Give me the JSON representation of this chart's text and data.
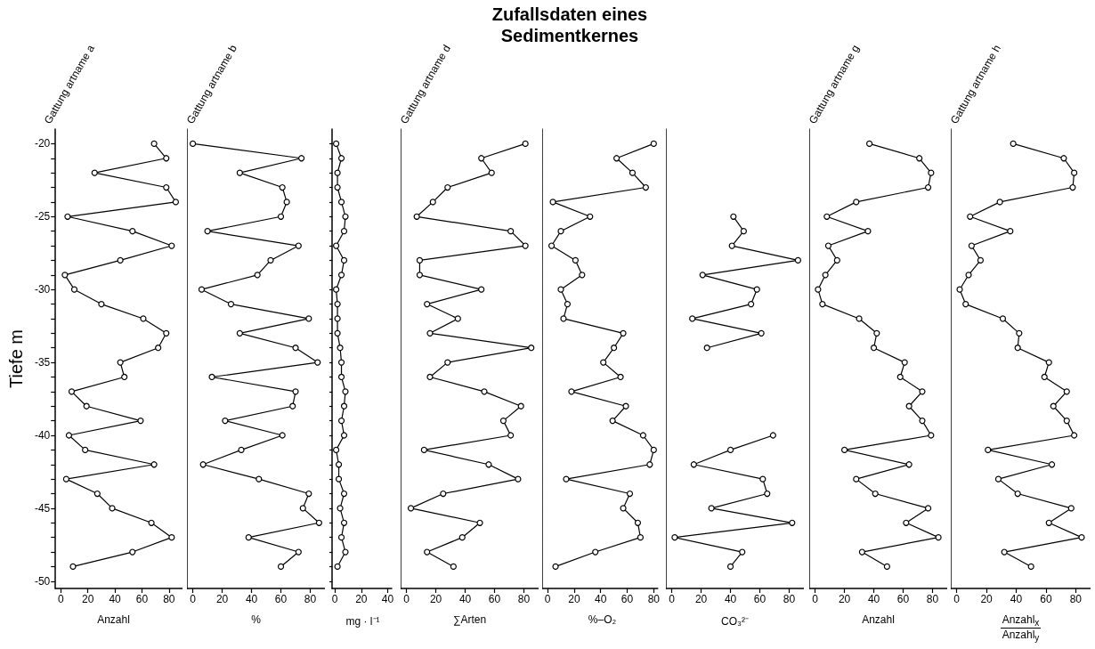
{
  "chart_data": [
    {
      "type": "other",
      "title": "Zufallsdaten eines Sedimentkernes"
    },
    {
      "type": "line",
      "title": "Gattung artname a",
      "xlabel": "Anzahl",
      "ylabel": "Tiefe m",
      "marker": "circle",
      "line_style": "solid",
      "xlim": [
        -4,
        90
      ],
      "xticks": [
        0,
        20,
        40,
        60,
        80
      ],
      "ylim": [
        -50.5,
        -19
      ],
      "yticks": [
        -20,
        {
          "value": -21,
          "label": null
        },
        {
          "value": -22,
          "label": null
        },
        {
          "value": -23,
          "label": null
        },
        {
          "value": -24,
          "label": null
        },
        -25,
        {
          "value": -26,
          "label": null
        },
        {
          "value": -27,
          "label": null
        },
        {
          "value": -28,
          "label": null
        },
        {
          "value": -29,
          "label": null
        },
        -30,
        {
          "value": -31,
          "label": null
        },
        {
          "value": -32,
          "label": null
        },
        {
          "value": -33,
          "label": null
        },
        {
          "value": -34,
          "label": null
        },
        -35,
        {
          "value": -36,
          "label": null
        },
        {
          "value": -37,
          "label": null
        },
        {
          "value": -38,
          "label": null
        },
        {
          "value": -39,
          "label": null
        },
        -40,
        {
          "value": -41,
          "label": null
        },
        {
          "value": -42,
          "label": null
        },
        {
          "value": -43,
          "label": null
        },
        {
          "value": -44,
          "label": null
        },
        -45,
        {
          "value": -46,
          "label": null
        },
        {
          "value": -47,
          "label": null
        },
        {
          "value": -48,
          "label": null
        },
        {
          "value": -49,
          "label": null
        },
        -50
      ],
      "series": [
        {
          "color": "#000000",
          "x": [
            69,
            78,
            25,
            78,
            85,
            5,
            53,
            82,
            44,
            3,
            10,
            30,
            61,
            78,
            72,
            44,
            47,
            8,
            19,
            59,
            6,
            18,
            69,
            4,
            27,
            38,
            67,
            82,
            53,
            9
          ],
          "values": [
            -20,
            -21,
            -22,
            -23,
            -24,
            -25,
            -26,
            -27,
            -28,
            -29,
            -30,
            -31,
            -32,
            -33,
            -34,
            -35,
            -36,
            -37,
            -38,
            -39,
            -40,
            -41,
            -42,
            -43,
            -44,
            -45,
            -46,
            -47,
            -48,
            -49
          ]
        }
      ]
    },
    {
      "type": "line",
      "title": "Gattung artname b",
      "xlabel": "%",
      "tick_labels": "x",
      "marker": "circle",
      "line_style": "solid",
      "xlim": [
        -4,
        90
      ],
      "xticks": [
        0,
        20,
        40,
        60,
        80
      ],
      "ylim": [
        -50.5,
        -19
      ],
      "yticks": [
        -20,
        {
          "value": -21,
          "label": null
        },
        {
          "value": -22,
          "label": null
        },
        {
          "value": -23,
          "label": null
        },
        {
          "value": -24,
          "label": null
        },
        -25,
        {
          "value": -26,
          "label": null
        },
        {
          "value": -27,
          "label": null
        },
        {
          "value": -28,
          "label": null
        },
        {
          "value": -29,
          "label": null
        },
        -30,
        {
          "value": -31,
          "label": null
        },
        {
          "value": -32,
          "label": null
        },
        {
          "value": -33,
          "label": null
        },
        {
          "value": -34,
          "label": null
        },
        -35,
        {
          "value": -36,
          "label": null
        },
        {
          "value": -37,
          "label": null
        },
        {
          "value": -38,
          "label": null
        },
        {
          "value": -39,
          "label": null
        },
        -40,
        {
          "value": -41,
          "label": null
        },
        {
          "value": -42,
          "label": null
        },
        {
          "value": -43,
          "label": null
        },
        {
          "value": -44,
          "label": null
        },
        -45,
        {
          "value": -46,
          "label": null
        },
        {
          "value": -47,
          "label": null
        },
        {
          "value": -48,
          "label": null
        },
        {
          "value": -49,
          "label": null
        },
        -50
      ],
      "series": [
        {
          "color": "#000000",
          "x": [
            0,
            74,
            32,
            61,
            64,
            60,
            10,
            72,
            53,
            44,
            6,
            26,
            79,
            32,
            70,
            85,
            13,
            70,
            68,
            22,
            61,
            33,
            7,
            45,
            79,
            75,
            86,
            38,
            72,
            60
          ],
          "values": [
            -20,
            -21,
            -22,
            -23,
            -24,
            -25,
            -26,
            -27,
            -28,
            -29,
            -30,
            -31,
            -32,
            -33,
            -34,
            -35,
            -36,
            -37,
            -38,
            -39,
            -40,
            -41,
            -42,
            -43,
            -44,
            -45,
            -46,
            -47,
            -48,
            -49
          ]
        }
      ]
    },
    {
      "type": "line",
      "xlabel": "mg · l⁻¹",
      "tick_labels": "x",
      "marker": "circle",
      "line_style": "solid",
      "xlim": [
        -2,
        43
      ],
      "xticks": [
        0,
        20,
        40
      ],
      "ylim": [
        -50.5,
        -19
      ],
      "yticks": [
        -20,
        {
          "value": -21,
          "label": null
        },
        {
          "value": -22,
          "label": null
        },
        {
          "value": -23,
          "label": null
        },
        {
          "value": -24,
          "label": null
        },
        -25,
        {
          "value": -26,
          "label": null
        },
        {
          "value": -27,
          "label": null
        },
        {
          "value": -28,
          "label": null
        },
        {
          "value": -29,
          "label": null
        },
        -30,
        {
          "value": -31,
          "label": null
        },
        {
          "value": -32,
          "label": null
        },
        {
          "value": -33,
          "label": null
        },
        {
          "value": -34,
          "label": null
        },
        -35,
        {
          "value": -36,
          "label": null
        },
        {
          "value": -37,
          "label": null
        },
        {
          "value": -38,
          "label": null
        },
        {
          "value": -39,
          "label": null
        },
        -40,
        {
          "value": -41,
          "label": null
        },
        {
          "value": -42,
          "label": null
        },
        {
          "value": -43,
          "label": null
        },
        {
          "value": -44,
          "label": null
        },
        -45,
        {
          "value": -46,
          "label": null
        },
        {
          "value": -47,
          "label": null
        },
        {
          "value": -48,
          "label": null
        },
        {
          "value": -49,
          "label": null
        },
        -50
      ],
      "series": [
        {
          "color": "#000000",
          "x": [
            1,
            5,
            2,
            2,
            5,
            8,
            7,
            1,
            7,
            5,
            1,
            2,
            2,
            2,
            4,
            5,
            5,
            8,
            7,
            5,
            7,
            1,
            3,
            3,
            7,
            4,
            7,
            5,
            8,
            2
          ],
          "values": [
            -20,
            -21,
            -22,
            -23,
            -24,
            -25,
            -26,
            -27,
            -28,
            -29,
            -30,
            -31,
            -32,
            -33,
            -34,
            -35,
            -36,
            -37,
            -38,
            -39,
            -40,
            -41,
            -42,
            -43,
            -44,
            -45,
            -46,
            -47,
            -48,
            -49
          ]
        }
      ]
    },
    {
      "type": "line",
      "title": "Gattung artname d",
      "xlabel": "∑Arten",
      "tick_labels": "x",
      "marker": "circle",
      "line_style": "solid",
      "xlim": [
        -4,
        90
      ],
      "xticks": [
        0,
        20,
        40,
        60,
        80
      ],
      "ylim": [
        -50.5,
        -19
      ],
      "yticks": [
        -20,
        {
          "value": -21,
          "label": null
        },
        {
          "value": -22,
          "label": null
        },
        {
          "value": -23,
          "label": null
        },
        {
          "value": -24,
          "label": null
        },
        -25,
        {
          "value": -26,
          "label": null
        },
        {
          "value": -27,
          "label": null
        },
        {
          "value": -28,
          "label": null
        },
        {
          "value": -29,
          "label": null
        },
        -30,
        {
          "value": -31,
          "label": null
        },
        {
          "value": -32,
          "label": null
        },
        {
          "value": -33,
          "label": null
        },
        {
          "value": -34,
          "label": null
        },
        -35,
        {
          "value": -36,
          "label": null
        },
        {
          "value": -37,
          "label": null
        },
        {
          "value": -38,
          "label": null
        },
        {
          "value": -39,
          "label": null
        },
        -40,
        {
          "value": -41,
          "label": null
        },
        {
          "value": -42,
          "label": null
        },
        {
          "value": -43,
          "label": null
        },
        {
          "value": -44,
          "label": null
        },
        -45,
        {
          "value": -46,
          "label": null
        },
        {
          "value": -47,
          "label": null
        },
        {
          "value": -48,
          "label": null
        },
        {
          "value": -49,
          "label": null
        },
        -50
      ],
      "series": [
        {
          "color": "#000000",
          "x": [
            81,
            51,
            58,
            28,
            18,
            7,
            71,
            81,
            9,
            9,
            51,
            14,
            35,
            16,
            85,
            28,
            16,
            53,
            78,
            66,
            71,
            12,
            56,
            76,
            25,
            3,
            50,
            38,
            14,
            32
          ],
          "values": [
            -20,
            -21,
            -22,
            -23,
            -24,
            -25,
            -26,
            -27,
            -28,
            -29,
            -30,
            -31,
            -32,
            -33,
            -34,
            -35,
            -36,
            -37,
            -38,
            -39,
            -40,
            -41,
            -42,
            -43,
            -44,
            -45,
            -46,
            -47,
            -48,
            -49
          ]
        }
      ]
    },
    {
      "type": "line",
      "xlabel": "%–O₂",
      "tick_labels": "x",
      "marker": "circle",
      "line_style": "solid",
      "xlim": [
        -4,
        83
      ],
      "xticks": [
        0,
        20,
        40,
        60,
        80
      ],
      "ylim": [
        -50.5,
        -19
      ],
      "yticks": [
        -20,
        {
          "value": -21,
          "label": null
        },
        {
          "value": -22,
          "label": null
        },
        {
          "value": -23,
          "label": null
        },
        {
          "value": -24,
          "label": null
        },
        -25,
        {
          "value": -26,
          "label": null
        },
        {
          "value": -27,
          "label": null
        },
        {
          "value": -28,
          "label": null
        },
        {
          "value": -29,
          "label": null
        },
        -30,
        {
          "value": -31,
          "label": null
        },
        {
          "value": -32,
          "label": null
        },
        {
          "value": -33,
          "label": null
        },
        {
          "value": -34,
          "label": null
        },
        -35,
        {
          "value": -36,
          "label": null
        },
        {
          "value": -37,
          "label": null
        },
        {
          "value": -38,
          "label": null
        },
        {
          "value": -39,
          "label": null
        },
        -40,
        {
          "value": -41,
          "label": null
        },
        {
          "value": -42,
          "label": null
        },
        {
          "value": -43,
          "label": null
        },
        {
          "value": -44,
          "label": null
        },
        -45,
        {
          "value": -46,
          "label": null
        },
        {
          "value": -47,
          "label": null
        },
        {
          "value": -48,
          "label": null
        },
        {
          "value": -49,
          "label": null
        },
        -50
      ],
      "series": [
        {
          "color": "#000000",
          "x": [
            80,
            52,
            64,
            74,
            4,
            32,
            10,
            3,
            21,
            26,
            10,
            15,
            12,
            57,
            50,
            42,
            55,
            18,
            59,
            49,
            72,
            80,
            77,
            14,
            62,
            57,
            68,
            70,
            36,
            6
          ],
          "values": [
            -20,
            -21,
            -22,
            -23,
            -24,
            -25,
            -26,
            -27,
            -28,
            -29,
            -30,
            -31,
            -32,
            -33,
            -34,
            -35,
            -36,
            -37,
            -38,
            -39,
            -40,
            -41,
            -42,
            -43,
            -44,
            -45,
            -46,
            -47,
            -48,
            -49
          ]
        }
      ]
    },
    {
      "type": "line",
      "xlabel": "CO₃²⁻",
      "tick_labels": "x",
      "marker": "circle",
      "line_style": "solid",
      "xlim": [
        -4,
        90
      ],
      "xticks": [
        0,
        20,
        40,
        60,
        80
      ],
      "ylim": [
        -50.5,
        -19
      ],
      "yticks": [
        -20,
        {
          "value": -21,
          "label": null
        },
        {
          "value": -22,
          "label": null
        },
        {
          "value": -23,
          "label": null
        },
        {
          "value": -24,
          "label": null
        },
        -25,
        {
          "value": -26,
          "label": null
        },
        {
          "value": -27,
          "label": null
        },
        {
          "value": -28,
          "label": null
        },
        {
          "value": -29,
          "label": null
        },
        -30,
        {
          "value": -31,
          "label": null
        },
        {
          "value": -32,
          "label": null
        },
        {
          "value": -33,
          "label": null
        },
        {
          "value": -34,
          "label": null
        },
        -35,
        {
          "value": -36,
          "label": null
        },
        {
          "value": -37,
          "label": null
        },
        {
          "value": -38,
          "label": null
        },
        {
          "value": -39,
          "label": null
        },
        -40,
        {
          "value": -41,
          "label": null
        },
        {
          "value": -42,
          "label": null
        },
        {
          "value": -43,
          "label": null
        },
        {
          "value": -44,
          "label": null
        },
        -45,
        {
          "value": -46,
          "label": null
        },
        {
          "value": -47,
          "label": null
        },
        {
          "value": -48,
          "label": null
        },
        {
          "value": -49,
          "label": null
        },
        -50
      ],
      "series": [
        {
          "color": "#000000",
          "x": [
            null,
            null,
            null,
            null,
            null,
            42,
            49,
            41,
            86,
            21,
            58,
            54,
            14,
            61,
            24,
            null,
            null,
            null,
            null,
            null,
            69,
            40,
            15,
            62,
            65,
            27,
            82,
            2,
            48,
            40
          ],
          "values": [
            null,
            null,
            null,
            null,
            null,
            -25,
            -26,
            -27,
            -28,
            -29,
            -30,
            -31,
            -32,
            -33,
            -34,
            null,
            null,
            null,
            null,
            null,
            -40,
            -41,
            -42,
            -43,
            -44,
            -45,
            -46,
            -47,
            -48,
            -49
          ]
        }
      ]
    },
    {
      "type": "line",
      "title": "Gattung artname g",
      "xlabel": "Anzahl",
      "tick_labels": "x",
      "marker": "circle",
      "line_style": "solid",
      "xlim": [
        -4,
        90
      ],
      "xticks": [
        0,
        20,
        40,
        60,
        80
      ],
      "ylim": [
        -50.5,
        -19
      ],
      "yticks": [
        -20,
        {
          "value": -21,
          "label": null
        },
        {
          "value": -22,
          "label": null
        },
        {
          "value": -23,
          "label": null
        },
        {
          "value": -24,
          "label": null
        },
        -25,
        {
          "value": -26,
          "label": null
        },
        {
          "value": -27,
          "label": null
        },
        {
          "value": -28,
          "label": null
        },
        {
          "value": -29,
          "label": null
        },
        -30,
        {
          "value": -31,
          "label": null
        },
        {
          "value": -32,
          "label": null
        },
        {
          "value": -33,
          "label": null
        },
        {
          "value": -34,
          "label": null
        },
        -35,
        {
          "value": -36,
          "label": null
        },
        {
          "value": -37,
          "label": null
        },
        {
          "value": -38,
          "label": null
        },
        {
          "value": -39,
          "label": null
        },
        -40,
        {
          "value": -41,
          "label": null
        },
        {
          "value": -42,
          "label": null
        },
        {
          "value": -43,
          "label": null
        },
        {
          "value": -44,
          "label": null
        },
        -45,
        {
          "value": -46,
          "label": null
        },
        {
          "value": -47,
          "label": null
        },
        {
          "value": -48,
          "label": null
        },
        {
          "value": -49,
          "label": null
        },
        -50
      ],
      "series": [
        {
          "color": "#000000",
          "x": [
            37,
            71,
            79,
            77,
            28,
            8,
            36,
            9,
            15,
            7,
            2,
            5,
            30,
            42,
            40,
            61,
            58,
            73,
            64,
            73,
            79,
            20,
            64,
            28,
            41,
            77,
            62,
            84,
            32,
            49
          ],
          "values": [
            -20,
            -21,
            -22,
            -23,
            -24,
            -25,
            -26,
            -27,
            -28,
            -29,
            -30,
            -31,
            -32,
            -33,
            -34,
            -35,
            -36,
            -37,
            -38,
            -39,
            -40,
            -41,
            -42,
            -43,
            -44,
            -45,
            -46,
            -47,
            -48,
            -49
          ]
        }
      ]
    },
    {
      "type": "line",
      "title": "Gattung artname h",
      "xlabel": "Anzahl$_{x}$\nAnzahl$_{y}$",
      "tick_labels": "x",
      "marker": "circle",
      "line_style": "solid",
      "xlim": [
        -4,
        90
      ],
      "xticks": [
        0,
        20,
        40,
        60,
        80
      ],
      "ylim": [
        -50.5,
        -19
      ],
      "yticks": [
        -20,
        {
          "value": -21,
          "label": null
        },
        {
          "value": -22,
          "label": null
        },
        {
          "value": -23,
          "label": null
        },
        {
          "value": -24,
          "label": null
        },
        -25,
        {
          "value": -26,
          "label": null
        },
        {
          "value": -27,
          "label": null
        },
        {
          "value": -28,
          "label": null
        },
        {
          "value": -29,
          "label": null
        },
        -30,
        {
          "value": -31,
          "label": null
        },
        {
          "value": -32,
          "label": null
        },
        {
          "value": -33,
          "label": null
        },
        {
          "value": -34,
          "label": null
        },
        -35,
        {
          "value": -36,
          "label": null
        },
        {
          "value": -37,
          "label": null
        },
        {
          "value": -38,
          "label": null
        },
        {
          "value": -39,
          "label": null
        },
        -40,
        {
          "value": -41,
          "label": null
        },
        {
          "value": -42,
          "label": null
        },
        {
          "value": -43,
          "label": null
        },
        {
          "value": -44,
          "label": null
        },
        -45,
        {
          "value": -46,
          "label": null
        },
        {
          "value": -47,
          "label": null
        },
        {
          "value": -48,
          "label": null
        },
        {
          "value": -49,
          "label": null
        },
        -50
      ],
      "series": [
        {
          "color": "#000000",
          "x": [
            38,
            72,
            79,
            78,
            29,
            9,
            36,
            10,
            16,
            8,
            2,
            6,
            31,
            42,
            41,
            62,
            59,
            74,
            65,
            74,
            79,
            21,
            64,
            28,
            41,
            77,
            62,
            84,
            32,
            50
          ],
          "values": [
            -20,
            -21,
            -22,
            -23,
            -24,
            -25,
            -26,
            -27,
            -28,
            -29,
            -30,
            -31,
            -32,
            -33,
            -34,
            -35,
            -36,
            -37,
            -38,
            -39,
            -40,
            -41,
            -42,
            -43,
            -44,
            -45,
            -46,
            -47,
            -48,
            -49
          ]
        }
      ]
    }
  ]
}
